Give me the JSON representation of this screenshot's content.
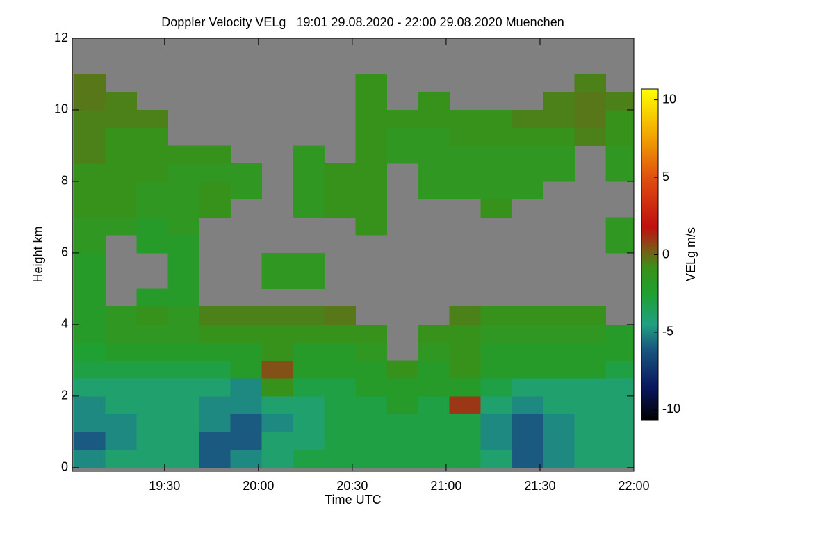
{
  "chart_data": {
    "type": "heatmap",
    "title": "Doppler Velocity VELg   19:01 29.08.2020 - 22:00 29.08.2020 Muenchen",
    "x_label": "Time UTC",
    "y_label": "Height km",
    "colorbar_label": "VELg m/s",
    "xlim": [
      1140.5,
      1320
    ],
    "xticks": [
      {
        "value": 1170,
        "label": "19:30"
      },
      {
        "value": 1200,
        "label": "20:00"
      },
      {
        "value": 1230,
        "label": "20:30"
      },
      {
        "value": 1260,
        "label": "21:00"
      },
      {
        "value": 1290,
        "label": "21:30"
      },
      {
        "value": 1320,
        "label": "22:00"
      }
    ],
    "ylim": [
      -0.1,
      12
    ],
    "yticks": [
      0,
      2,
      4,
      6,
      8,
      10,
      12
    ],
    "clim": [
      -10.7,
      10.7
    ],
    "cticks": [
      -10,
      -5,
      0,
      5,
      10
    ],
    "missing_color": "#808080",
    "colorscale": [
      [
        -10.7,
        "#000000"
      ],
      [
        -8.5,
        "#0a1860"
      ],
      [
        -6,
        "#1a5a80"
      ],
      [
        -4.5,
        "#20a080"
      ],
      [
        -2.5,
        "#1fa030"
      ],
      [
        -0.8,
        "#3a9018"
      ],
      [
        0.3,
        "#7a5a18"
      ],
      [
        1.8,
        "#c01010"
      ],
      [
        5,
        "#e05010"
      ],
      [
        7.5,
        "#f0a000"
      ],
      [
        10.7,
        "#ffff00"
      ]
    ],
    "x": [
      1141,
      1151,
      1161,
      1171,
      1181,
      1191,
      1201,
      1211,
      1221,
      1231,
      1241,
      1251,
      1261,
      1271,
      1281,
      1291,
      1301,
      1311
    ],
    "y": [
      0,
      0.5,
      1,
      1.5,
      2,
      2.5,
      3,
      3.5,
      4,
      4.5,
      5,
      5.5,
      6,
      6.5,
      7,
      7.5,
      8,
      8.5,
      9,
      9.5,
      10,
      10.5,
      11,
      11.5
    ],
    "z": [
      [
        -5,
        -4,
        -4,
        -4,
        -6,
        -5,
        -4,
        -3,
        -3,
        -3,
        -3,
        -3,
        -3,
        -4,
        -6,
        -5,
        -4,
        -4
      ],
      [
        -6,
        -5,
        -4,
        -4,
        -6,
        -6,
        -4,
        -4,
        -3,
        -3,
        -3,
        -3,
        -3,
        -5,
        -6,
        -5,
        -4,
        -4
      ],
      [
        -5,
        -5,
        -4,
        -4,
        -5,
        -6,
        -5,
        -4,
        -3,
        -3,
        -3,
        -3,
        -3,
        -5,
        -6,
        -5,
        -4,
        -4
      ],
      [
        -5,
        -4,
        -4,
        -4,
        -5,
        -5,
        -4,
        -4,
        -3,
        -3,
        -2,
        -3,
        1,
        -4,
        -5,
        -4,
        -4,
        -4
      ],
      [
        -4,
        -4,
        -4,
        -4,
        -4,
        -5,
        -1,
        -3,
        -3,
        -2,
        -2,
        -2,
        -2,
        -3,
        -4,
        -4,
        -4,
        -4
      ],
      [
        -3,
        -3,
        -3,
        -3,
        -3,
        -2,
        0.5,
        -2,
        -2,
        -2,
        -1,
        -2,
        -1,
        -2,
        -2,
        -2,
        -2,
        -3
      ],
      [
        -2.5,
        -2,
        -2,
        -2,
        -2,
        -2,
        -1,
        -2,
        -2,
        -1.5,
        null,
        -1.5,
        -1,
        -2,
        -2,
        -2,
        -2,
        -2
      ],
      [
        -2,
        -1.5,
        -1.5,
        -1.5,
        -1,
        -1,
        -1,
        -1,
        -1,
        -1,
        null,
        -1,
        -1,
        -1.5,
        -1.5,
        -1.5,
        -1.5,
        -2
      ],
      [
        -2,
        -1.5,
        -1,
        -1.5,
        -0.5,
        -0.5,
        -0.5,
        -0.5,
        -0.3,
        null,
        null,
        null,
        -0.5,
        -1,
        -1,
        -1,
        -1,
        null
      ],
      [
        -2,
        null,
        -2,
        -2,
        null,
        null,
        null,
        null,
        null,
        null,
        null,
        null,
        null,
        null,
        null,
        null,
        null,
        null
      ],
      [
        -2,
        null,
        null,
        -2,
        null,
        null,
        -1.5,
        -1.5,
        null,
        null,
        null,
        null,
        null,
        null,
        null,
        null,
        null,
        null
      ],
      [
        -2,
        null,
        null,
        -2,
        null,
        null,
        -1.5,
        -1.5,
        null,
        null,
        null,
        null,
        null,
        null,
        null,
        null,
        null,
        null
      ],
      [
        -1.5,
        null,
        -2,
        -2,
        null,
        null,
        null,
        null,
        null,
        null,
        null,
        null,
        null,
        null,
        null,
        null,
        null,
        -1.5
      ],
      [
        -1.5,
        -1.5,
        -2,
        -1.5,
        null,
        null,
        null,
        null,
        null,
        -1,
        null,
        null,
        null,
        null,
        null,
        null,
        null,
        -1.5
      ],
      [
        -1,
        -1,
        -1.5,
        -1.5,
        -1,
        null,
        null,
        -1.5,
        -1,
        -1,
        null,
        null,
        null,
        -1,
        null,
        null,
        null,
        null
      ],
      [
        -1,
        -1,
        -1.5,
        -1.5,
        -1,
        -1.5,
        null,
        -1.5,
        -1,
        -1,
        null,
        -1.5,
        -1.5,
        -1.5,
        -1.5,
        null,
        null,
        null
      ],
      [
        -1,
        -1,
        -1,
        -1.5,
        -1.5,
        -1.5,
        null,
        -1.5,
        -1,
        -1,
        null,
        -1.5,
        -1.5,
        -1.5,
        -1.5,
        -1.5,
        null,
        -1.5
      ],
      [
        -0.5,
        -1,
        -1,
        -1,
        -1,
        null,
        null,
        -1.5,
        null,
        -1,
        -1.5,
        -1.5,
        -1.5,
        -1.5,
        -1.5,
        -1.5,
        null,
        -1.5
      ],
      [
        -0.5,
        -1,
        -1,
        null,
        null,
        null,
        null,
        null,
        null,
        -1,
        -1.5,
        -1.5,
        -1,
        -1,
        -1,
        -1,
        -0.5,
        -1
      ],
      [
        -0.5,
        -0.5,
        -0.5,
        null,
        null,
        null,
        null,
        null,
        null,
        -1,
        -1,
        -1,
        -1,
        -1,
        -0.5,
        -0.5,
        -0.3,
        -1
      ],
      [
        -0.3,
        -0.5,
        null,
        null,
        null,
        null,
        null,
        null,
        null,
        -1,
        null,
        -1,
        null,
        null,
        null,
        -0.5,
        -0.3,
        -0.5
      ],
      [
        -0.3,
        null,
        null,
        null,
        null,
        null,
        null,
        null,
        null,
        -1,
        null,
        null,
        null,
        null,
        null,
        null,
        -0.5,
        null
      ],
      [
        null,
        null,
        null,
        null,
        null,
        null,
        null,
        null,
        null,
        null,
        null,
        null,
        null,
        null,
        null,
        null,
        null,
        null
      ],
      [
        null,
        null,
        null,
        null,
        null,
        null,
        null,
        null,
        null,
        null,
        null,
        null,
        null,
        null,
        null,
        null,
        null,
        null
      ]
    ]
  }
}
